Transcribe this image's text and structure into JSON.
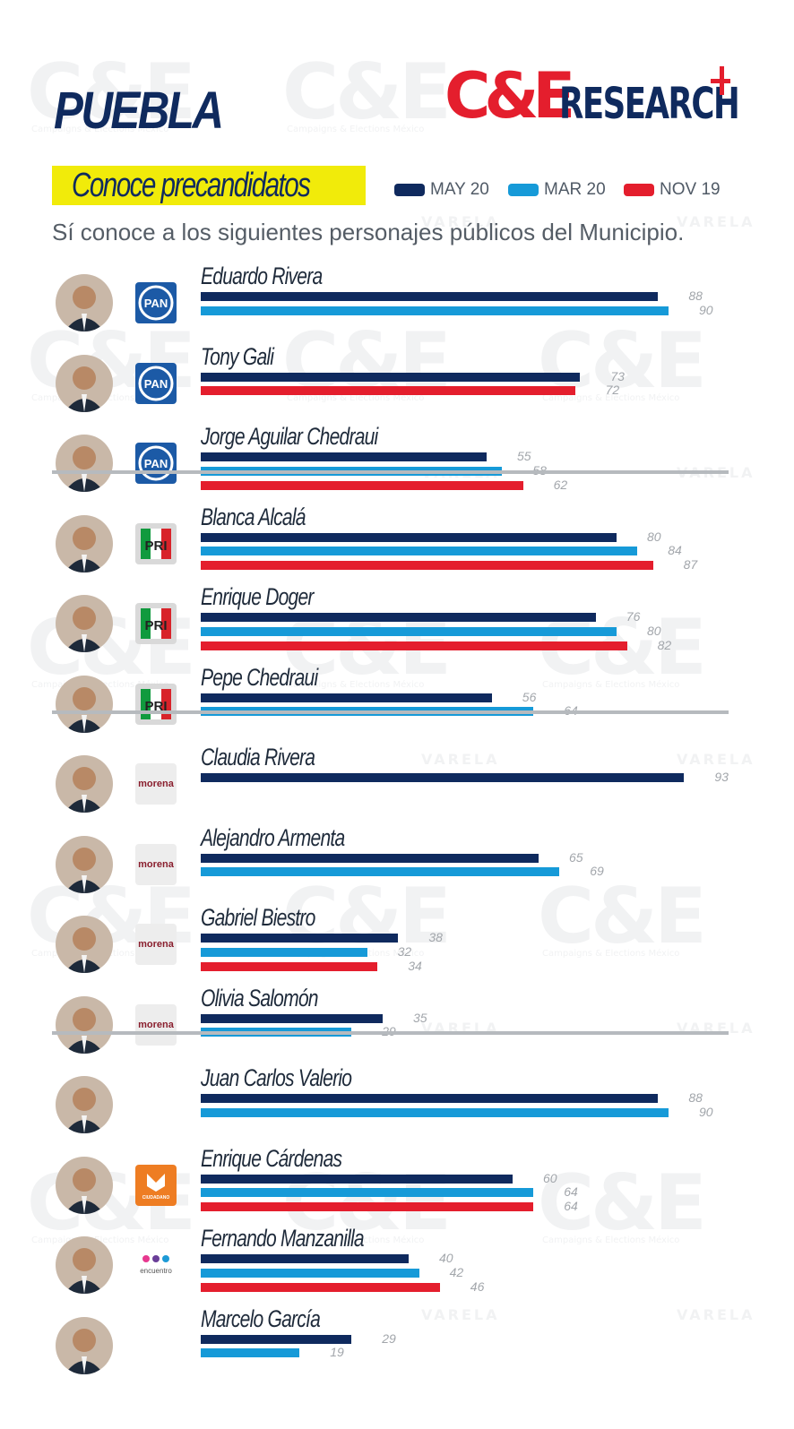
{
  "header": {
    "region": "PUEBLA",
    "brand_logo": "C&ERESEARCH",
    "watermark": "C&E",
    "watermark_sub": "Campaigns & Elections México",
    "watermark_varela": "VARELA"
  },
  "section_title": "Conoce precandidatos",
  "question": "Sí conoce a los siguientes personajes públicos del Municipio.",
  "colors": {
    "may20": "#0f2a5e",
    "mar20": "#169ad8",
    "nov19": "#e41e2d",
    "highlight": "#f1eb0a"
  },
  "chart_data": {
    "type": "bar",
    "orientation": "horizontal",
    "legend": [
      "MAY 20",
      "MAR 20",
      "NOV 19"
    ],
    "legend_position": "top-right",
    "xlim": [
      0,
      100
    ],
    "series_keys": [
      "may20",
      "mar20",
      "nov19"
    ],
    "groups": [
      {
        "party": "PAN",
        "candidates": [
          {
            "name": "Eduardo Rivera",
            "may20": 88,
            "mar20": 90
          },
          {
            "name": "Tony Gali",
            "may20": 73,
            "nov19": 72
          },
          {
            "name": "Jorge Aguilar Chedraui",
            "may20": 55,
            "mar20": 58,
            "nov19": 62
          }
        ]
      },
      {
        "party": "PRI",
        "candidates": [
          {
            "name": "Blanca Alcalá",
            "may20": 80,
            "mar20": 84,
            "nov19": 87
          },
          {
            "name": "Enrique Doger",
            "may20": 76,
            "mar20": 80,
            "nov19": 82
          },
          {
            "name": "Pepe Chedraui",
            "may20": 56,
            "mar20": 64
          }
        ]
      },
      {
        "party": "morena",
        "candidates": [
          {
            "name": "Claudia Rivera",
            "may20": 93
          },
          {
            "name": "Alejandro Armenta",
            "may20": 65,
            "mar20": 69
          },
          {
            "name": "Gabriel Biestro",
            "may20": 38,
            "mar20": 32,
            "nov19": 34
          },
          {
            "name": "Olivia Salomón",
            "may20": 35,
            "mar20": 29
          }
        ]
      },
      {
        "party": "",
        "candidates": [
          {
            "name": "Juan Carlos Valerio",
            "may20": 88,
            "mar20": 90
          },
          {
            "name": "Enrique Cárdenas",
            "party": "MOVIMIENTO CIUDADANO",
            "may20": 60,
            "mar20": 64,
            "nov19": 64
          },
          {
            "name": "Fernando Manzanilla",
            "party": "encuentro social",
            "may20": 40,
            "mar20": 42,
            "nov19": 46
          },
          {
            "name": "Marcelo García",
            "may20": 29,
            "mar20": 19
          }
        ]
      }
    ]
  }
}
